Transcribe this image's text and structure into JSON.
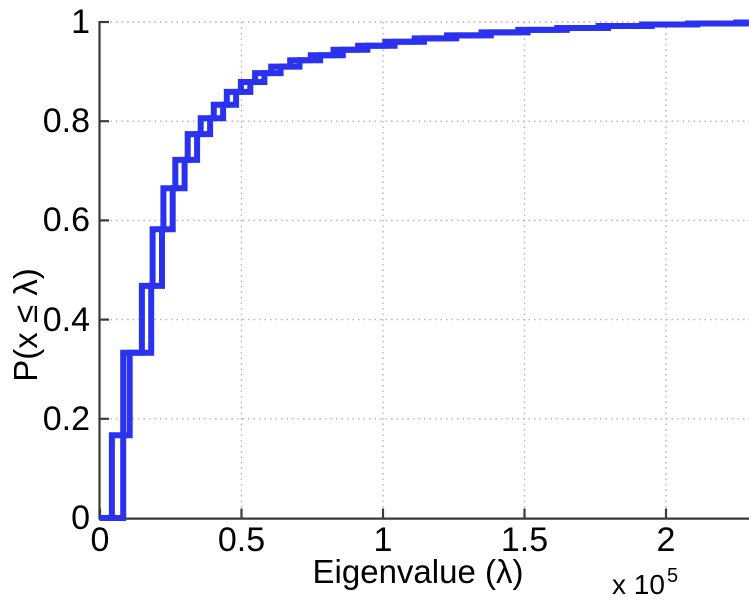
{
  "figure": {
    "kind": "matlab-style-ecdf-figure",
    "background": "#ffffff"
  },
  "style": {
    "line_color": "#2a32ef",
    "axis_color": "#3a3a3a",
    "grid_color": "#b3b3b3",
    "text_color": "#000000"
  },
  "axes": {
    "xlabel": "Eigenvalue (λ)",
    "ylabel": "P(x ≤ λ)",
    "offset_label": "x 10",
    "offset_exponent": "5",
    "x_ticks": [
      {
        "value": 0,
        "label": "0"
      },
      {
        "value": 0.5,
        "label": "0.5"
      },
      {
        "value": 1,
        "label": "1"
      },
      {
        "value": 1.5,
        "label": "1.5"
      },
      {
        "value": 2,
        "label": "2"
      }
    ],
    "y_ticks": [
      {
        "value": 0,
        "label": "0"
      },
      {
        "value": 0.2,
        "label": "0.2"
      },
      {
        "value": 0.4,
        "label": "0.4"
      },
      {
        "value": 0.6,
        "label": "0.6"
      },
      {
        "value": 0.8,
        "label": "0.8"
      },
      {
        "value": 1,
        "label": "1"
      }
    ],
    "xlim_units_1e5": [
      0,
      2.29
    ],
    "ylim": [
      0,
      1
    ],
    "grid": "on"
  },
  "chart_data": {
    "type": "line",
    "subtype": "empirical-cdf-stairs",
    "title": "",
    "xlabel": "Eigenvalue (λ)",
    "ylabel": "P(x ≤ λ)",
    "x_scale_factor": "1e5",
    "xlim": [
      0,
      2.29
    ],
    "ylim": [
      0,
      1
    ],
    "grid": "on",
    "legend": "none",
    "series": [
      {
        "name": "ecdf-curve-1",
        "color": "#2a32ef",
        "start": [
          0,
          0
        ],
        "steps": [
          [
            0.042,
            0.167
          ],
          [
            0.105,
            0.333
          ],
          [
            0.148,
            0.468
          ],
          [
            0.186,
            0.582
          ],
          [
            0.224,
            0.665
          ],
          [
            0.266,
            0.722
          ],
          [
            0.31,
            0.774
          ],
          [
            0.356,
            0.806
          ],
          [
            0.402,
            0.833
          ],
          [
            0.448,
            0.859
          ],
          [
            0.498,
            0.879
          ],
          [
            0.548,
            0.897
          ],
          [
            0.605,
            0.91
          ],
          [
            0.672,
            0.923
          ],
          [
            0.745,
            0.933
          ],
          [
            0.825,
            0.944
          ],
          [
            0.912,
            0.952
          ],
          [
            1.008,
            0.96
          ],
          [
            1.112,
            0.967
          ],
          [
            1.226,
            0.973
          ],
          [
            1.348,
            0.979
          ],
          [
            1.478,
            0.984
          ],
          [
            1.616,
            0.988
          ],
          [
            1.762,
            0.992
          ],
          [
            1.916,
            0.995
          ],
          [
            2.078,
            0.997
          ],
          [
            2.248,
            0.999
          ]
        ]
      },
      {
        "name": "ecdf-curve-2",
        "color": "#2a32ef",
        "start": [
          0,
          0
        ],
        "steps": [
          [
            0.082,
            0.333
          ],
          [
            0.181,
            0.468
          ],
          [
            0.219,
            0.582
          ],
          [
            0.257,
            0.665
          ],
          [
            0.299,
            0.722
          ],
          [
            0.343,
            0.774
          ],
          [
            0.389,
            0.806
          ],
          [
            0.435,
            0.833
          ],
          [
            0.481,
            0.859
          ],
          [
            0.531,
            0.879
          ],
          [
            0.581,
            0.897
          ],
          [
            0.638,
            0.91
          ],
          [
            0.705,
            0.923
          ],
          [
            0.778,
            0.933
          ],
          [
            0.858,
            0.944
          ],
          [
            0.945,
            0.952
          ],
          [
            1.041,
            0.96
          ],
          [
            1.145,
            0.967
          ],
          [
            1.259,
            0.973
          ],
          [
            1.381,
            0.979
          ],
          [
            1.511,
            0.984
          ],
          [
            1.649,
            0.988
          ],
          [
            1.795,
            0.992
          ],
          [
            1.949,
            0.995
          ],
          [
            2.111,
            0.997
          ],
          [
            2.281,
            0.999
          ]
        ]
      }
    ]
  }
}
